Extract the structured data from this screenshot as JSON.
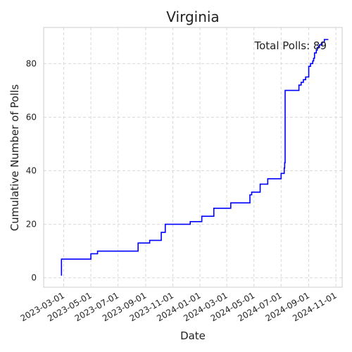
{
  "chart_data": {
    "type": "line",
    "title": "Virginia",
    "xlabel": "Date",
    "ylabel": "Cumulative Number of Polls",
    "annotation": "Total Polls: 89",
    "grid": true,
    "line_color": "#0000ff",
    "xlim": [
      "2023-01-15",
      "2024-11-15"
    ],
    "ylim": [
      -3.5,
      93.5
    ],
    "x_ticks": [
      "2023-03-01",
      "2023-05-01",
      "2023-07-01",
      "2023-09-01",
      "2023-11-01",
      "2024-01-01",
      "2024-03-01",
      "2024-05-01",
      "2024-07-01",
      "2024-09-01",
      "2024-11-01"
    ],
    "y_ticks": [
      0,
      20,
      40,
      60,
      80
    ],
    "series": [
      {
        "x": [
          "2023-02-23",
          "2023-02-24",
          "2023-05-01",
          "2023-05-16",
          "2023-08-15",
          "2023-09-10",
          "2023-10-06",
          "2023-10-15",
          "2023-12-10",
          "2024-01-05",
          "2024-02-01",
          "2024-03-10",
          "2024-04-22",
          "2024-04-26",
          "2024-05-15",
          "2024-06-01",
          "2024-07-01",
          "2024-07-08",
          "2024-07-09",
          "2024-07-10",
          "2024-08-10",
          "2024-08-15",
          "2024-08-20",
          "2024-08-25",
          "2024-09-01",
          "2024-09-05",
          "2024-09-10",
          "2024-09-12",
          "2024-09-14",
          "2024-09-16",
          "2024-09-18",
          "2024-09-20",
          "2024-09-25",
          "2024-10-01",
          "2024-10-06",
          "2024-10-15"
        ],
        "y": [
          1,
          7,
          9,
          10,
          13,
          14,
          17,
          20,
          21,
          23,
          26,
          28,
          31,
          32,
          35,
          37,
          39,
          41,
          43,
          70,
          72,
          73,
          74,
          75,
          79,
          80,
          81,
          82,
          84,
          84,
          85,
          86,
          87,
          88,
          89,
          89
        ]
      }
    ]
  }
}
